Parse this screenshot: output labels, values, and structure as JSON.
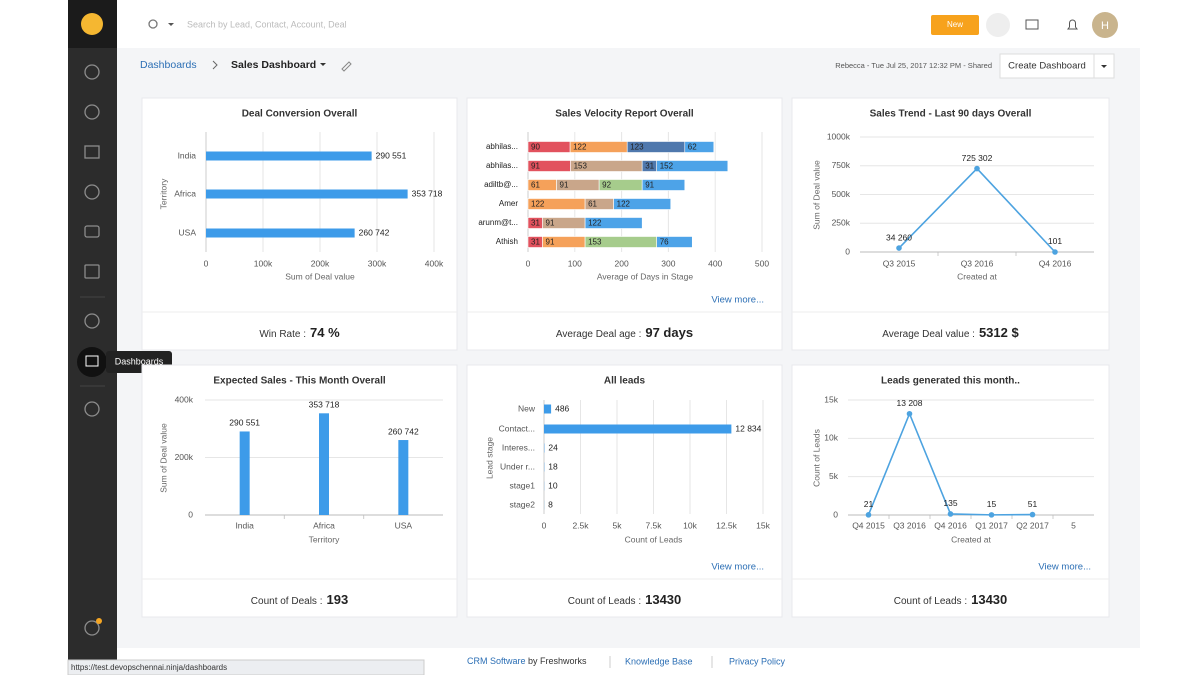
{
  "header": {
    "search_placeholder": "Search by Lead, Contact, Account, Deal",
    "new_button": "New",
    "avatar_initial": "H"
  },
  "breadcrumb": {
    "root": "Dashboards",
    "current": "Sales Dashboard"
  },
  "dashboard_meta": "Rebecca - Tue Jul 25, 2017 12:32 PM - Shared",
  "create_button": "Create Dashboard",
  "sidebar_tooltip": "Dashboards",
  "status_url": "https://test.devopschennai.ninja/dashboards",
  "footer": {
    "crm": "CRM Software",
    "by": "by Freshworks",
    "kb": "Knowledge Base",
    "privacy": "Privacy Policy"
  },
  "chart_data": [
    {
      "type": "hbar",
      "title": "Deal Conversion Overall",
      "categories": [
        "India",
        "Africa",
        "USA"
      ],
      "values": [
        290551,
        353718,
        260742
      ],
      "value_labels": [
        "290 551",
        "353 718",
        "260 742"
      ],
      "color": "#3d9be9",
      "xlim": [
        0,
        400000
      ],
      "xticks": [
        0,
        {
          "value": 100000,
          "label": "100k"
        },
        {
          "value": 200000,
          "label": "200k"
        },
        {
          "value": 300000,
          "label": "300k"
        },
        {
          "value": 400000,
          "label": "400k"
        }
      ],
      "xlabel": "Sum of Deal value",
      "ylabel": "Territory",
      "grid": true,
      "summary_label": "Win Rate :",
      "summary_value": "74 %"
    },
    {
      "type": "hbar",
      "title": "Sales Velocity Report Overall",
      "categories": [
        "abhilas...",
        "abhilas...",
        "adiltb@...",
        "Amer",
        "arunm@t...",
        "Athish"
      ],
      "series": [
        {
          "color": "#e2525e",
          "values": [
            90,
            91,
            0,
            null,
            31,
            31
          ]
        },
        {
          "color": "#f5a15a",
          "values": [
            122,
            null,
            61,
            122,
            null,
            91
          ]
        },
        {
          "color": "#c9a68a",
          "values": [
            null,
            153,
            91,
            61,
            91,
            null
          ]
        },
        {
          "color": "#a6cc8c",
          "values": [
            null,
            null,
            92,
            null,
            null,
            153
          ]
        },
        {
          "color": "#4f78ad",
          "values": [
            123,
            31,
            null,
            null,
            null,
            null
          ]
        },
        {
          "color": "#4da3e8",
          "values": [
            62,
            152,
            91,
            122,
            122,
            76
          ]
        }
      ],
      "xlim": [
        0,
        500
      ],
      "xticks": [
        0,
        100,
        200,
        300,
        400,
        500
      ],
      "xlabel": "Average of Days in Stage",
      "grid": true,
      "link": "View more...",
      "summary_label": "Average Deal age :",
      "summary_value": "97 days"
    },
    {
      "type": "line",
      "title": "Sales Trend - Last 90 days Overall",
      "categories": [
        "Q3 2015",
        "Q3 2016",
        "Q4 2016"
      ],
      "values": [
        34260,
        725302,
        101
      ],
      "value_labels": [
        "34 260",
        "725 302",
        "101"
      ],
      "color": "#4da3e0",
      "ylim": [
        0,
        1000000
      ],
      "yticks": [
        0,
        {
          "value": 250000,
          "label": "250k"
        },
        {
          "value": 500000,
          "label": "500k"
        },
        {
          "value": 750000,
          "label": "750k"
        },
        {
          "value": 1000000,
          "label": "1000k"
        }
      ],
      "xlabel": "Created at",
      "ylabel": "Sum of Deal value",
      "grid": true,
      "summary_label": "Average Deal value :",
      "summary_value": "5312 $"
    },
    {
      "type": "bar",
      "title": "Expected Sales - This Month Overall",
      "categories": [
        "India",
        "Africa",
        "USA"
      ],
      "values": [
        290551,
        353718,
        260742
      ],
      "value_labels": [
        "290 551",
        "353 718",
        "260 742"
      ],
      "color": "#3d9be9",
      "ylim": [
        0,
        400000
      ],
      "yticks": [
        0,
        {
          "value": 200000,
          "label": "200k"
        },
        {
          "value": 400000,
          "label": "400k"
        }
      ],
      "xlabel": "Territory",
      "ylabel": "Sum of Deal value",
      "grid": true,
      "summary_label": "Count of Deals :",
      "summary_value": "193"
    },
    {
      "type": "hbar",
      "title": "All leads",
      "categories": [
        "New",
        "Contact...",
        "Interes...",
        "Under r...",
        "stage1",
        "stage2"
      ],
      "values": [
        486,
        12834,
        24,
        18,
        10,
        8
      ],
      "value_labels": [
        "486",
        "12 834",
        "24",
        "18",
        "10",
        "8"
      ],
      "color": "#3d9be9",
      "xlim": [
        0,
        15000
      ],
      "xticks": [
        0,
        {
          "value": 2500,
          "label": "2.5k"
        },
        {
          "value": 5000,
          "label": "5k"
        },
        {
          "value": 7500,
          "label": "7.5k"
        },
        {
          "value": 10000,
          "label": "10k"
        },
        {
          "value": 12500,
          "label": "12.5k"
        },
        {
          "value": 15000,
          "label": "15k"
        }
      ],
      "xlabel": "Count of Leads",
      "ylabel": "Lead stage",
      "grid": true,
      "link": "View more...",
      "summary_label": "Count of Leads :",
      "summary_value": "13430"
    },
    {
      "type": "line",
      "title": "Leads generated this month..",
      "categories": [
        "Q4 2015",
        "Q3 2016",
        "Q4 2016",
        "Q1 2017",
        "Q2 2017",
        "5"
      ],
      "values": [
        21,
        13208,
        135,
        15,
        51,
        null
      ],
      "value_labels": [
        "21",
        "13 208",
        "135",
        "15",
        "51",
        null
      ],
      "color": "#4da3e0",
      "ylim": [
        0,
        15000
      ],
      "yticks": [
        0,
        {
          "value": 5000,
          "label": "5k"
        },
        {
          "value": 10000,
          "label": "10k"
        },
        {
          "value": 15000,
          "label": "15k"
        }
      ],
      "xlabel": "Created at",
      "ylabel": "Count of Leads",
      "grid": true,
      "link": "View more...",
      "summary_label": "Count of Leads :",
      "summary_value": "13430"
    }
  ]
}
